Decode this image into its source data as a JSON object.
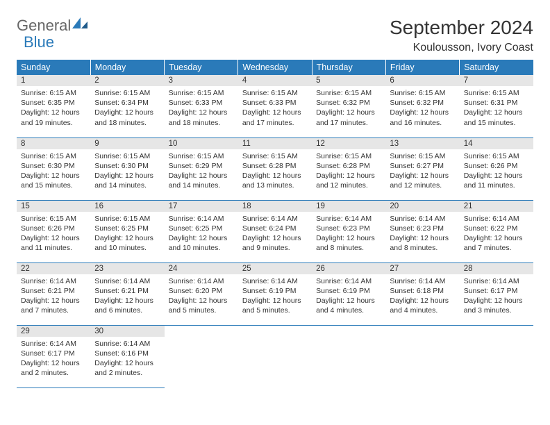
{
  "brand": {
    "part1": "General",
    "part2": "Blue"
  },
  "title": "September 2024",
  "location": "Koulousson, Ivory Coast",
  "colors": {
    "header_bg": "#2a7ab9",
    "header_text": "#ffffff",
    "daynum_bg": "#e6e6e6",
    "border": "#2a7ab9"
  },
  "weekdays": [
    "Sunday",
    "Monday",
    "Tuesday",
    "Wednesday",
    "Thursday",
    "Friday",
    "Saturday"
  ],
  "weeks": [
    [
      {
        "n": "1",
        "sr": "6:15 AM",
        "ss": "6:35 PM",
        "dl": "12 hours and 19 minutes."
      },
      {
        "n": "2",
        "sr": "6:15 AM",
        "ss": "6:34 PM",
        "dl": "12 hours and 18 minutes."
      },
      {
        "n": "3",
        "sr": "6:15 AM",
        "ss": "6:33 PM",
        "dl": "12 hours and 18 minutes."
      },
      {
        "n": "4",
        "sr": "6:15 AM",
        "ss": "6:33 PM",
        "dl": "12 hours and 17 minutes."
      },
      {
        "n": "5",
        "sr": "6:15 AM",
        "ss": "6:32 PM",
        "dl": "12 hours and 17 minutes."
      },
      {
        "n": "6",
        "sr": "6:15 AM",
        "ss": "6:32 PM",
        "dl": "12 hours and 16 minutes."
      },
      {
        "n": "7",
        "sr": "6:15 AM",
        "ss": "6:31 PM",
        "dl": "12 hours and 15 minutes."
      }
    ],
    [
      {
        "n": "8",
        "sr": "6:15 AM",
        "ss": "6:30 PM",
        "dl": "12 hours and 15 minutes."
      },
      {
        "n": "9",
        "sr": "6:15 AM",
        "ss": "6:30 PM",
        "dl": "12 hours and 14 minutes."
      },
      {
        "n": "10",
        "sr": "6:15 AM",
        "ss": "6:29 PM",
        "dl": "12 hours and 14 minutes."
      },
      {
        "n": "11",
        "sr": "6:15 AM",
        "ss": "6:28 PM",
        "dl": "12 hours and 13 minutes."
      },
      {
        "n": "12",
        "sr": "6:15 AM",
        "ss": "6:28 PM",
        "dl": "12 hours and 12 minutes."
      },
      {
        "n": "13",
        "sr": "6:15 AM",
        "ss": "6:27 PM",
        "dl": "12 hours and 12 minutes."
      },
      {
        "n": "14",
        "sr": "6:15 AM",
        "ss": "6:26 PM",
        "dl": "12 hours and 11 minutes."
      }
    ],
    [
      {
        "n": "15",
        "sr": "6:15 AM",
        "ss": "6:26 PM",
        "dl": "12 hours and 11 minutes."
      },
      {
        "n": "16",
        "sr": "6:15 AM",
        "ss": "6:25 PM",
        "dl": "12 hours and 10 minutes."
      },
      {
        "n": "17",
        "sr": "6:14 AM",
        "ss": "6:25 PM",
        "dl": "12 hours and 10 minutes."
      },
      {
        "n": "18",
        "sr": "6:14 AM",
        "ss": "6:24 PM",
        "dl": "12 hours and 9 minutes."
      },
      {
        "n": "19",
        "sr": "6:14 AM",
        "ss": "6:23 PM",
        "dl": "12 hours and 8 minutes."
      },
      {
        "n": "20",
        "sr": "6:14 AM",
        "ss": "6:23 PM",
        "dl": "12 hours and 8 minutes."
      },
      {
        "n": "21",
        "sr": "6:14 AM",
        "ss": "6:22 PM",
        "dl": "12 hours and 7 minutes."
      }
    ],
    [
      {
        "n": "22",
        "sr": "6:14 AM",
        "ss": "6:21 PM",
        "dl": "12 hours and 7 minutes."
      },
      {
        "n": "23",
        "sr": "6:14 AM",
        "ss": "6:21 PM",
        "dl": "12 hours and 6 minutes."
      },
      {
        "n": "24",
        "sr": "6:14 AM",
        "ss": "6:20 PM",
        "dl": "12 hours and 5 minutes."
      },
      {
        "n": "25",
        "sr": "6:14 AM",
        "ss": "6:19 PM",
        "dl": "12 hours and 5 minutes."
      },
      {
        "n": "26",
        "sr": "6:14 AM",
        "ss": "6:19 PM",
        "dl": "12 hours and 4 minutes."
      },
      {
        "n": "27",
        "sr": "6:14 AM",
        "ss": "6:18 PM",
        "dl": "12 hours and 4 minutes."
      },
      {
        "n": "28",
        "sr": "6:14 AM",
        "ss": "6:17 PM",
        "dl": "12 hours and 3 minutes."
      }
    ],
    [
      {
        "n": "29",
        "sr": "6:14 AM",
        "ss": "6:17 PM",
        "dl": "12 hours and 2 minutes."
      },
      {
        "n": "30",
        "sr": "6:14 AM",
        "ss": "6:16 PM",
        "dl": "12 hours and 2 minutes."
      },
      null,
      null,
      null,
      null,
      null
    ]
  ],
  "labels": {
    "sunrise": "Sunrise:",
    "sunset": "Sunset:",
    "daylight": "Daylight:"
  }
}
